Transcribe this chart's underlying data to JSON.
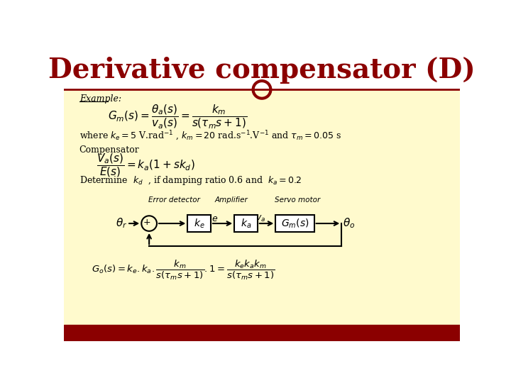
{
  "title": "Derivative compensator (D)",
  "title_color": "#8B0000",
  "title_fontsize": 28,
  "bg_color_top": "#FFFFFF",
  "bg_color_bottom": "#FFFACD",
  "accent_color": "#8B0000",
  "content_bg": "#FFFACD",
  "example_label": "Example:",
  "formula1": "$G_m(s) = \\dfrac{\\theta_a(s)}{v_a(s)} = \\dfrac{k_m}{s(\\tau_m s+1)}$",
  "where_text": "where $k_e = 5$ V.rad$^{-1}$ , $k_m = 20$ rad.s$^{-1}$.V$^{-1}$ and $\\tau_m = 0.05$ s",
  "compensator_label": "Compensator",
  "formula2": "$\\dfrac{V_a(s)}{E(s)} = k_a(1 + sk_d)$",
  "determine_text": "Determine  $k_d$  , if damping ratio 0.6 and  $k_a = 0.2$",
  "block_labels": [
    "$k_e$",
    "$k_a$",
    "$G_m(s)$"
  ],
  "block_labels_above": [
    "Error detector",
    "Amplifier",
    "Servo motor"
  ],
  "input_label": "$\\theta_r$",
  "output_label": "$\\theta_o$",
  "formula3": "$G_o(s) = k_e . k_a . \\dfrac{k_m}{s(\\tau_m s+1)} . 1 = \\dfrac{k_e k_a k_m}{s(\\tau_m s+1)}$",
  "bottom_bar_color": "#8B0000",
  "circle_color": "#8B0000"
}
